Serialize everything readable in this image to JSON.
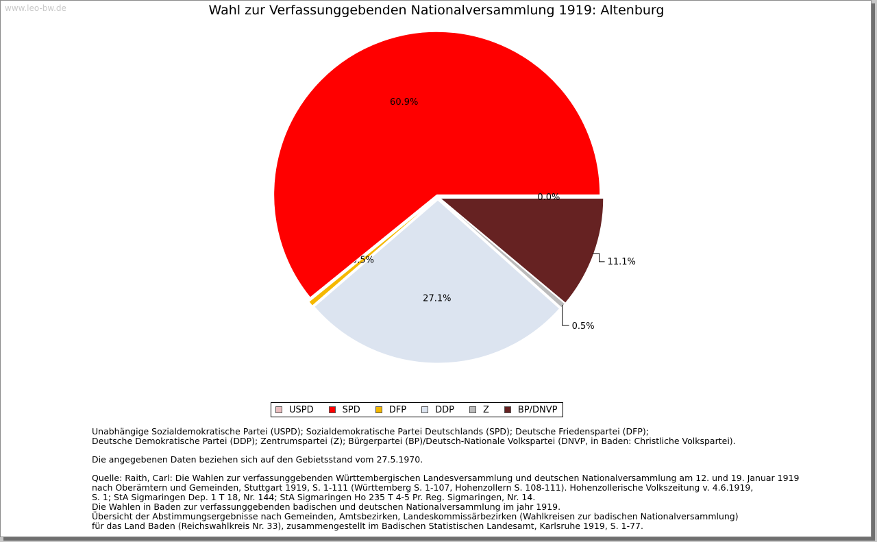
{
  "watermark": "www.leo-bw.de",
  "chart_data": {
    "type": "pie",
    "title": "Wahl zur Verfassunggebenden Nationalversammlung 1919: Altenburg",
    "slices": [
      {
        "name": "BP/DNVP",
        "value": 11.1,
        "label": "11.1%",
        "color": "#662222"
      },
      {
        "name": "Z",
        "value": 0.5,
        "label": "0.5%",
        "color": "#bbbbbb"
      },
      {
        "name": "DDP",
        "value": 27.1,
        "label": "27.1%",
        "color": "#dce4f0"
      },
      {
        "name": "DFP",
        "value": 0.5,
        "label": "0.5%",
        "color": "#f5b800"
      },
      {
        "name": "SPD",
        "value": 60.9,
        "label": "60.9%",
        "color": "#ff0000"
      },
      {
        "name": "USPD",
        "value": 0.0,
        "label": "0.0%",
        "color": "#ebbfc0"
      }
    ],
    "legend": [
      "USPD",
      "SPD",
      "DFP",
      "DDP",
      "Z",
      "BP/DNVP"
    ],
    "legend_position": "bottom-center"
  },
  "notes": {
    "abbrev_1": "Unabhängige Sozialdemokratische Partei (USPD); Sozialdemokratische Partei Deutschlands (SPD); Deutsche Friedenspartei (DFP);",
    "abbrev_2": "Deutsche Demokratische Partei (DDP); Zentrumspartei (Z); Bürgerpartei (BP)/Deutsch-Nationale Volkspartei (DNVP, in Baden: Christliche Volkspartei).",
    "gebiet": "Die angegebenen Daten beziehen sich auf den Gebietsstand vom 27.5.1970.",
    "quelle_1": "Quelle: Raith, Carl: Die Wahlen zur verfassunggebenden Württembergischen Landesversammlung und deutschen Nationalversammlung am 12. und 19. Januar 1919",
    "quelle_2": "nach Oberämtern und Gemeinden, Stuttgart 1919, S. 1-111 (Württemberg S. 1-107, Hohenzollern S. 108-111). Hohenzollerische Volkszeitung v. 4.6.1919,",
    "quelle_3": "S. 1; StA Sigmaringen Dep. 1 T 18, Nr. 144; StA Sigmaringen Ho 235 T 4-5 Pr. Reg. Sigmaringen, Nr. 14.",
    "quelle_4": "Die Wahlen in Baden zur verfassunggebenden badischen und deutschen Nationalversammlung im jahr 1919.",
    "quelle_5": "Übersicht der Abstimmungsergebnisse nach Gemeinden, Amtsbezirken, Landeskommissärbezirken (Wahlkreisen zur badischen Nationalversammlung)",
    "quelle_6": "für das Land Baden (Reichswahlkreis Nr. 33), zusammengestellt im Badischen Statistischen Landesamt, Karlsruhe 1919, S. 1-77."
  }
}
